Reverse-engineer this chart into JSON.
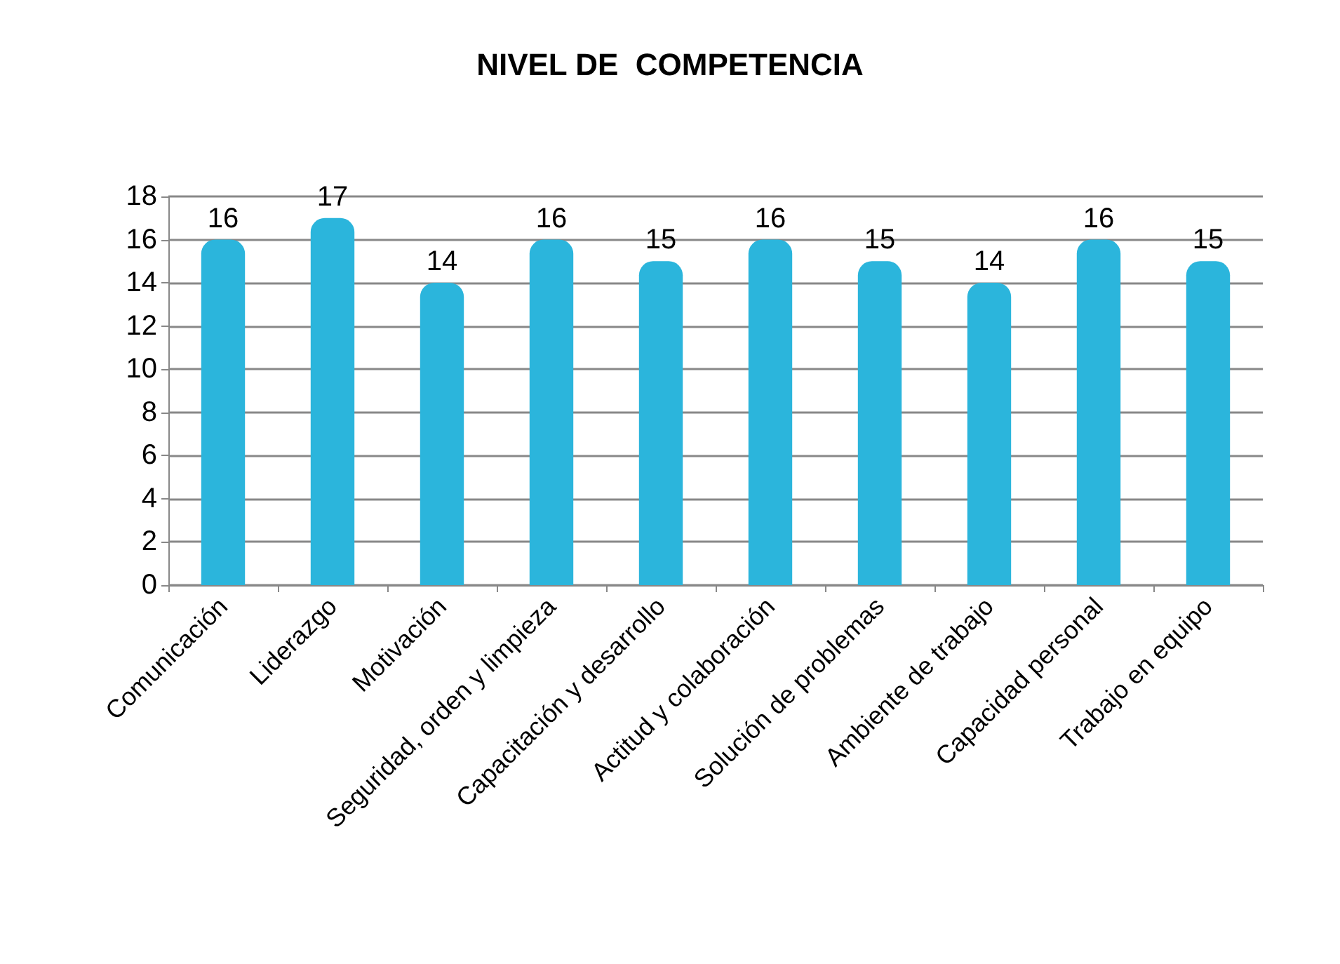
{
  "chart_data": {
    "type": "bar",
    "title": "NIVEL DE  COMPETENCIA",
    "categories": [
      "Comunicación",
      "Liderazgo",
      "Motivación",
      "Seguridad, orden y limpieza",
      "Capacitación y desarrollo",
      "Actitud y colaboración",
      "Solución de problemas",
      "Ambiente de trabajo",
      "Capacidad personal",
      "Trabajo en equipo"
    ],
    "values": [
      16,
      17,
      14,
      16,
      15,
      16,
      15,
      14,
      16,
      15
    ],
    "color": "#2bb5dc",
    "ylim": [
      0,
      18
    ],
    "yticks": [
      0,
      2,
      4,
      6,
      8,
      10,
      12,
      14,
      16,
      18
    ],
    "grid": "y",
    "data_labels": true
  }
}
